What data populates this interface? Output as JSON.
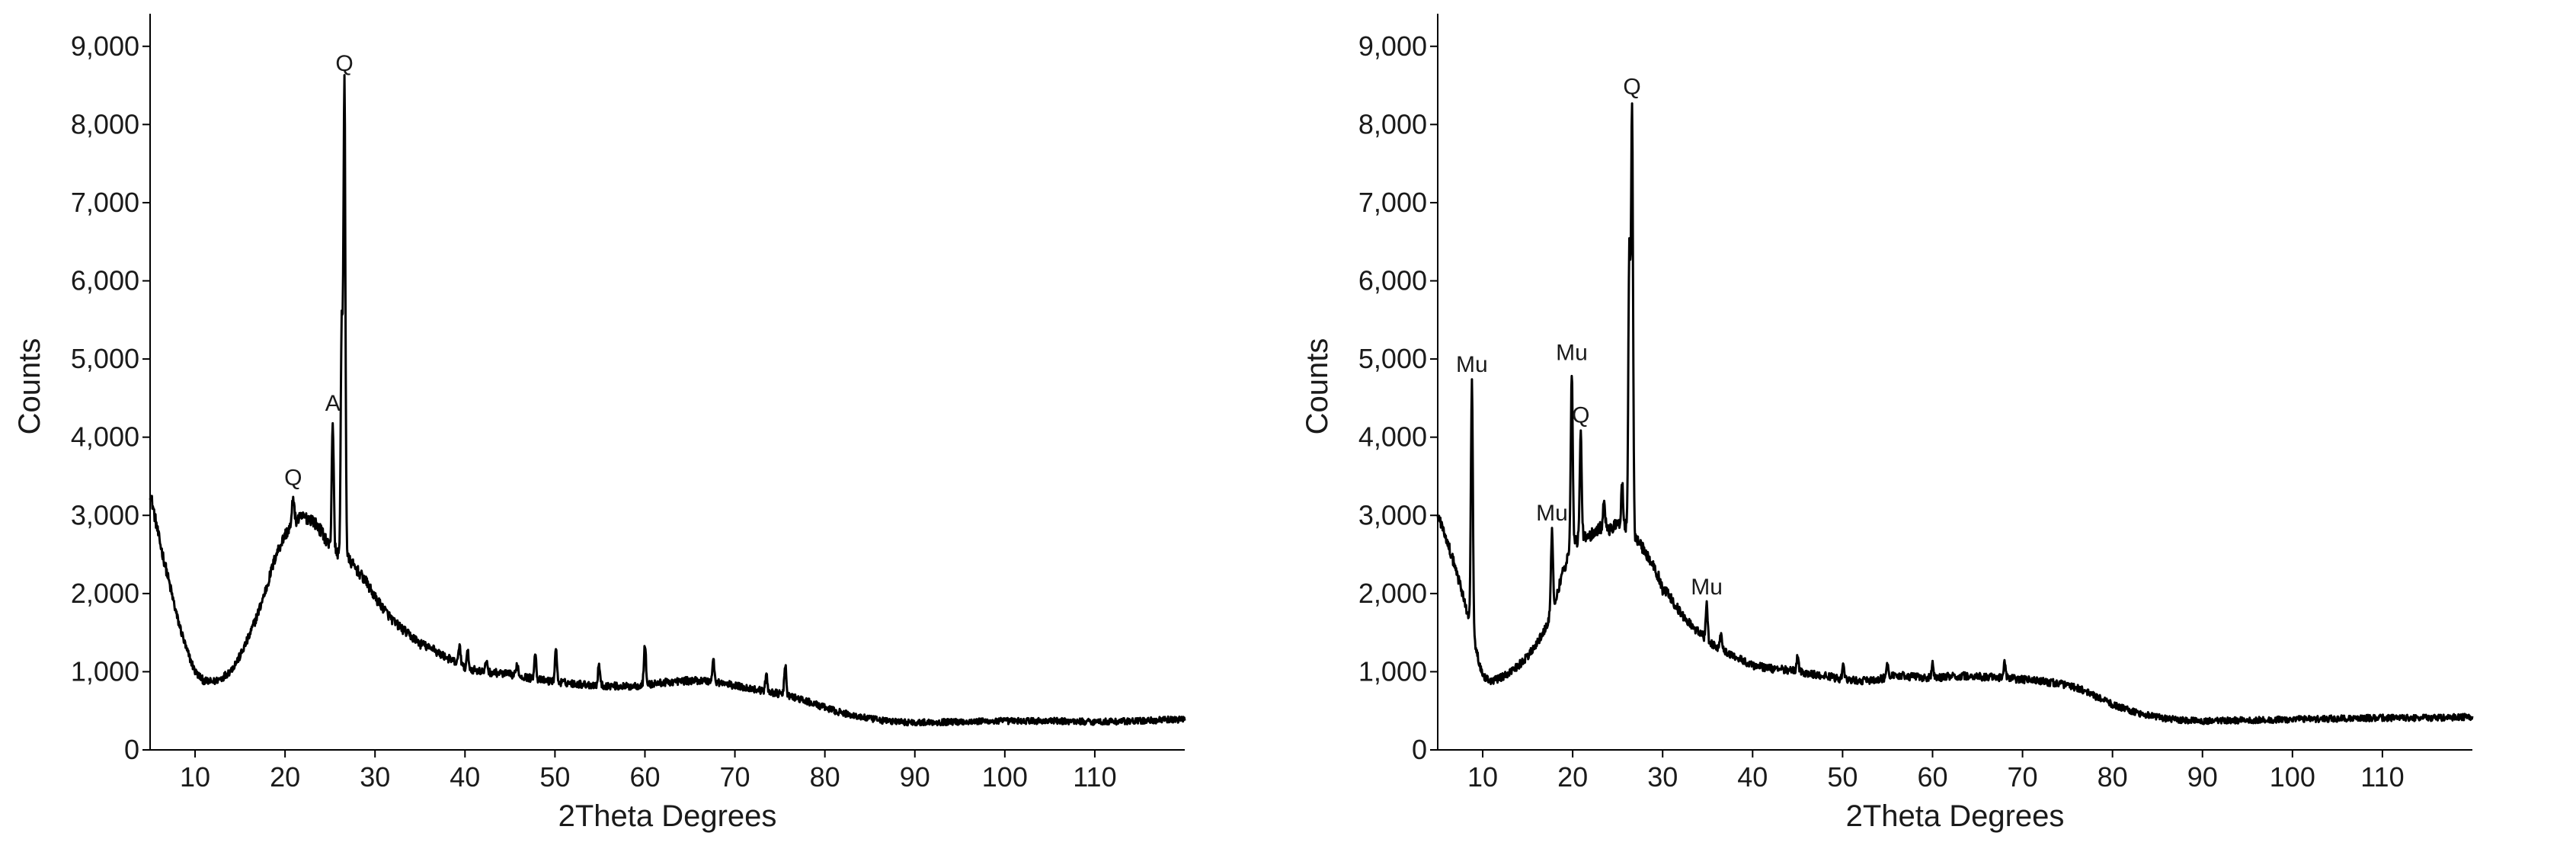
{
  "chart_data": [
    {
      "type": "line",
      "xlabel": "2Theta Degrees",
      "ylabel": "Counts",
      "xlim": [
        5,
        120
      ],
      "ylim": [
        0,
        9300
      ],
      "x_ticks": [
        10,
        20,
        30,
        40,
        50,
        60,
        70,
        80,
        90,
        100,
        110
      ],
      "x_tick_labels": [
        "10",
        "20",
        "30",
        "40",
        "50",
        "60",
        "70",
        "80",
        "90",
        "100",
        "110"
      ],
      "y_ticks": [
        0,
        1000,
        2000,
        3000,
        4000,
        5000,
        6000,
        7000,
        8000,
        9000
      ],
      "y_tick_labels": [
        "0",
        "1,000",
        "2,000",
        "3,000",
        "4,000",
        "5,000",
        "6,000",
        "7,000",
        "8,000",
        "9,000"
      ],
      "grid": false,
      "line_color": "#000000",
      "series": [
        {
          "x": [
            5,
            6,
            7,
            8,
            9,
            10,
            11,
            12,
            13,
            14,
            15,
            16,
            17,
            18,
            19,
            20,
            21,
            22,
            23,
            24,
            25,
            26,
            27,
            28,
            29,
            30,
            32,
            34,
            36,
            38,
            40,
            42,
            44,
            46,
            48,
            50,
            52,
            54,
            56,
            58,
            60,
            62,
            64,
            66,
            68,
            70,
            72,
            74,
            76,
            78,
            80,
            82,
            84,
            86,
            88,
            90,
            95,
            100,
            105,
            110,
            115,
            119
          ],
          "y": [
            3300,
            2700,
            2200,
            1700,
            1300,
            1000,
            880,
            870,
            920,
            1020,
            1200,
            1450,
            1750,
            2100,
            2500,
            2750,
            2920,
            2980,
            2950,
            2800,
            2600,
            2500,
            2450,
            2300,
            2150,
            1950,
            1650,
            1450,
            1300,
            1180,
            1050,
            1000,
            980,
            950,
            900,
            870,
            850,
            830,
            820,
            810,
            830,
            860,
            880,
            890,
            870,
            820,
            780,
            740,
            690,
            620,
            540,
            470,
            420,
            380,
            360,
            350,
            360,
            370,
            370,
            360,
            370,
            390
          ]
        }
      ],
      "peaks": [
        {
          "x": 20.9,
          "y": 3250,
          "label": "Q"
        },
        {
          "x": 25.3,
          "y": 4200,
          "label": "A"
        },
        {
          "x": 26.6,
          "y": 8550,
          "label": "Q"
        },
        {
          "x": 26.3,
          "y": 5400,
          "label": ""
        },
        {
          "x": 35.0,
          "y": 1350,
          "label": ""
        },
        {
          "x": 36.5,
          "y": 1320,
          "label": ""
        },
        {
          "x": 39.4,
          "y": 1350,
          "label": ""
        },
        {
          "x": 40.3,
          "y": 1250,
          "label": ""
        },
        {
          "x": 42.4,
          "y": 1150,
          "label": ""
        },
        {
          "x": 45.8,
          "y": 1100,
          "label": ""
        },
        {
          "x": 47.8,
          "y": 1250,
          "label": ""
        },
        {
          "x": 50.1,
          "y": 1300,
          "label": ""
        },
        {
          "x": 54.9,
          "y": 1100,
          "label": ""
        },
        {
          "x": 60.0,
          "y": 1350,
          "label": ""
        },
        {
          "x": 67.6,
          "y": 1150,
          "label": ""
        },
        {
          "x": 73.5,
          "y": 950,
          "label": ""
        },
        {
          "x": 75.6,
          "y": 1080,
          "label": ""
        }
      ]
    },
    {
      "type": "line",
      "xlabel": "2Theta Degrees",
      "ylabel": "Counts",
      "xlim": [
        5,
        120
      ],
      "ylim": [
        0,
        9300
      ],
      "x_ticks": [
        10,
        20,
        30,
        40,
        50,
        60,
        70,
        80,
        90,
        100,
        110
      ],
      "x_tick_labels": [
        "10",
        "20",
        "30",
        "40",
        "50",
        "60",
        "70",
        "80",
        "90",
        "100",
        "110"
      ],
      "y_ticks": [
        0,
        1000,
        2000,
        3000,
        4000,
        5000,
        6000,
        7000,
        8000,
        9000
      ],
      "y_tick_labels": [
        "0",
        "1,000",
        "2,000",
        "3,000",
        "4,000",
        "5,000",
        "6,000",
        "7,000",
        "8,000",
        "9,000"
      ],
      "grid": false,
      "line_color": "#000000",
      "series": [
        {
          "x": [
            5,
            6,
            7,
            8,
            9,
            10,
            11,
            12,
            13,
            14,
            15,
            16,
            17,
            18,
            19,
            20,
            21,
            22,
            23,
            24,
            25,
            26,
            27,
            28,
            29,
            30,
            32,
            34,
            36,
            38,
            40,
            42,
            44,
            46,
            48,
            50,
            52,
            54,
            56,
            58,
            60,
            62,
            64,
            66,
            68,
            70,
            72,
            74,
            76,
            78,
            80,
            82,
            84,
            86,
            88,
            90,
            95,
            100,
            105,
            110,
            115,
            119
          ],
          "y": [
            3000,
            2700,
            2300,
            1900,
            1400,
            950,
            880,
            920,
            980,
            1080,
            1200,
            1350,
            1550,
            1900,
            2300,
            2650,
            2700,
            2750,
            2850,
            2800,
            2900,
            2850,
            2700,
            2550,
            2350,
            2100,
            1750,
            1500,
            1300,
            1200,
            1080,
            1040,
            1020,
            980,
            950,
            900,
            880,
            900,
            960,
            930,
            920,
            940,
            950,
            930,
            920,
            900,
            880,
            850,
            800,
            690,
            580,
            500,
            440,
            400,
            380,
            370,
            380,
            390,
            400,
            410,
            410,
            420
          ]
        }
      ],
      "peaks": [
        {
          "x": 8.8,
          "y": 4700,
          "label": "Mu"
        },
        {
          "x": 17.7,
          "y": 2800,
          "label": "Mu"
        },
        {
          "x": 19.9,
          "y": 4850,
          "label": "Mu"
        },
        {
          "x": 20.9,
          "y": 4050,
          "label": "Q"
        },
        {
          "x": 26.6,
          "y": 8250,
          "label": "Q"
        },
        {
          "x": 26.3,
          "y": 6400,
          "label": ""
        },
        {
          "x": 23.5,
          "y": 3250,
          "label": ""
        },
        {
          "x": 25.5,
          "y": 3400,
          "label": ""
        },
        {
          "x": 34.9,
          "y": 1850,
          "label": "Mu"
        },
        {
          "x": 30.0,
          "y": 2050,
          "label": ""
        },
        {
          "x": 36.5,
          "y": 1500,
          "label": ""
        },
        {
          "x": 45.0,
          "y": 1200,
          "label": ""
        },
        {
          "x": 50.1,
          "y": 1100,
          "label": ""
        },
        {
          "x": 55.0,
          "y": 1100,
          "label": ""
        },
        {
          "x": 60.0,
          "y": 1100,
          "label": ""
        },
        {
          "x": 68.0,
          "y": 1100,
          "label": ""
        }
      ]
    }
  ]
}
